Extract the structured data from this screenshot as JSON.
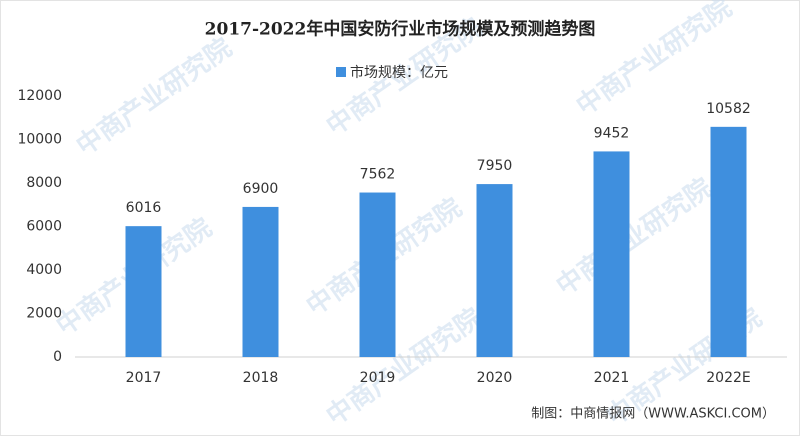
{
  "chart_data": {
    "type": "bar",
    "title": "2017-2022年中国安防行业市场规模及预测趋势图",
    "categories": [
      "2017",
      "2018",
      "2019",
      "2020",
      "2021",
      "2022E"
    ],
    "series": [
      {
        "name": "市场规模：亿元",
        "color": "#3f8fde",
        "values": [
          6016,
          6900,
          7562,
          7950,
          9452,
          10582
        ]
      }
    ],
    "ylim": [
      0,
      12000
    ],
    "yticks": [
      0,
      2000,
      4000,
      6000,
      8000,
      10000,
      12000
    ],
    "grid": false,
    "legend": "top",
    "source": "制图：中商情报网（WWW.ASKCI.COM）",
    "watermark": "中商产业研究院"
  }
}
